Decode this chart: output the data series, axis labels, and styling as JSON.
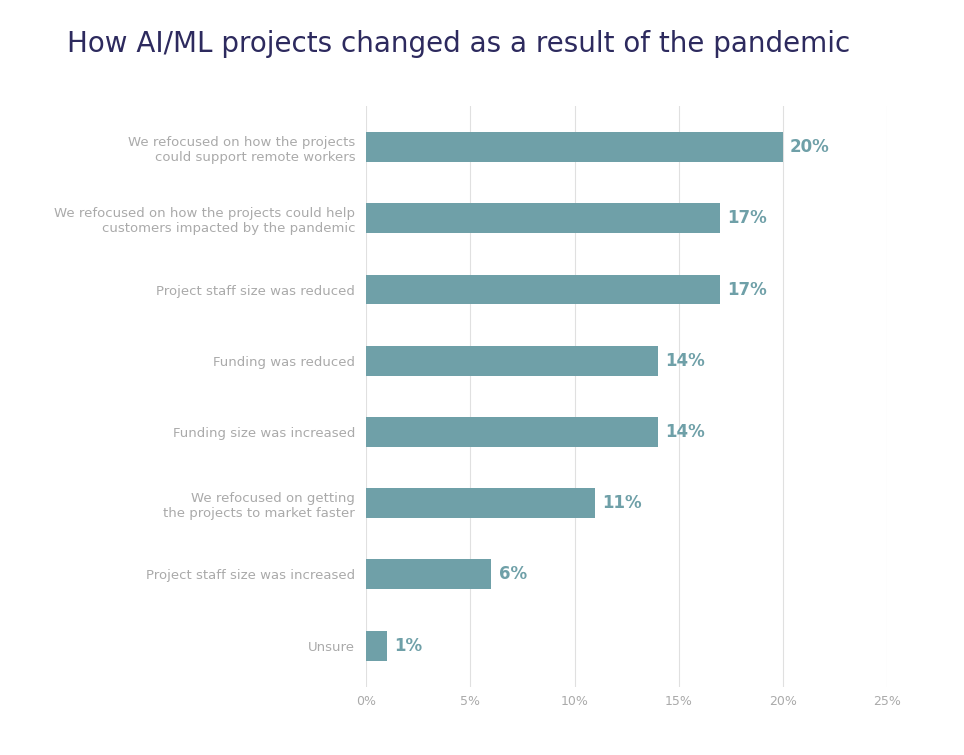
{
  "title": "How AI/ML projects changed as a result of the pandemic",
  "categories": [
    "Unsure",
    "Project staff size was increased",
    "We refocused on getting\nthe projects to market faster",
    "Funding size was increased",
    "Funding was reduced",
    "Project staff size was reduced",
    "We refocused on how the projects could help\ncustomers impacted by the pandemic",
    "We refocused on how the projects\ncould support remote workers"
  ],
  "values": [
    1,
    6,
    11,
    14,
    14,
    17,
    17,
    20
  ],
  "bar_color": "#6fa0a8",
  "label_color": "#6fa0a8",
  "title_color": "#2d2a5e",
  "tick_label_color": "#aaaaaa",
  "value_label_fontsize": 12,
  "category_fontsize": 9.5,
  "title_fontsize": 20,
  "background_color": "#ffffff",
  "xlim": [
    0,
    25
  ],
  "xticks": [
    0,
    5,
    10,
    15,
    20,
    25
  ],
  "xtick_labels": [
    "0%",
    "5%",
    "10%",
    "15%",
    "20%",
    "25%"
  ]
}
